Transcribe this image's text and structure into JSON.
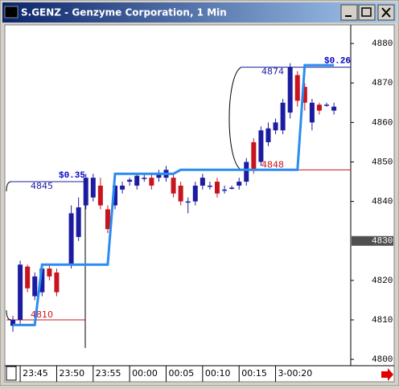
{
  "window": {
    "title": "S.GENZ - Genzyme Corporation, 1 Min"
  },
  "chart_data": {
    "type": "candlestick",
    "categories": [
      null,
      "23:45",
      null,
      null,
      null,
      null,
      "23:50",
      null,
      null,
      null,
      null,
      "23:55",
      null,
      null,
      null,
      null,
      "00:00",
      null,
      null,
      null,
      null,
      "00:05",
      null,
      null,
      null,
      null,
      "00:10",
      null,
      null,
      null,
      null,
      "00:15",
      null,
      null,
      null,
      null,
      "3-00:20",
      null,
      null,
      null,
      null,
      null,
      null,
      null,
      null
    ],
    "open": [
      4808.5,
      4810,
      4823.5,
      4816,
      4817,
      4823,
      4822,
      null,
      4824,
      4831,
      4839,
      4841,
      4844,
      4838,
      4839,
      4843,
      4845,
      4844,
      4846,
      4846,
      4846,
      4846,
      4846,
      4844,
      4840,
      4840,
      4844,
      4844,
      4845,
      4843,
      4843.5,
      4844,
      4845,
      4855,
      4850,
      4855,
      4858,
      4858,
      4862.5,
      4872,
      4869,
      4860,
      4864.5,
      4864.5,
      4863
    ],
    "high": [
      4811,
      4825,
      4824,
      4822,
      4824,
      4824,
      4823,
      null,
      4839,
      4841,
      4847,
      4847,
      4846,
      4839,
      4845,
      4845,
      4846,
      4847,
      4847,
      4847,
      4848,
      4849,
      4847,
      4845,
      4841,
      4845,
      4847,
      4845,
      4846,
      4844,
      4844,
      4846,
      4851,
      4856,
      4859,
      4860,
      4861,
      4866,
      4875,
      4873,
      4870,
      4866,
      4865,
      4865,
      4865
    ],
    "low": [
      4807,
      4809,
      4817,
      4815,
      4816,
      4820,
      4816,
      null,
      4823,
      4830,
      4838,
      4840,
      4838,
      4832,
      4838,
      4842,
      4844,
      4843,
      4845,
      4843,
      4845,
      4845,
      4841,
      4839,
      4837,
      4839,
      4843,
      4843,
      4841,
      4842,
      4843,
      4843,
      4844,
      4847,
      4849,
      4854,
      4857,
      4857,
      4861,
      4864,
      4863,
      4858,
      4862,
      4864,
      4862
    ],
    "close": [
      4810,
      4824,
      4818,
      4821,
      4823,
      4821,
      4817,
      null,
      4837,
      4838.5,
      4846,
      4846,
      4839,
      4833,
      4844,
      4844,
      4845.5,
      4846.5,
      4846,
      4844,
      4847,
      4848,
      4842,
      4840,
      4840,
      4844,
      4846,
      4844,
      4842,
      4843,
      4843.5,
      4845,
      4850,
      4848,
      4858,
      4858.5,
      4860,
      4865,
      4874,
      4865.5,
      4865,
      4865,
      4863,
      4864.5,
      4864
    ],
    "up_color": "#1c1ca0",
    "down_color": "#c8141e",
    "overlay": {
      "color": "#2a8cf0",
      "values": [
        4808.7,
        4808.7,
        4808.7,
        4808.7,
        4824,
        4824,
        4824,
        4824,
        4824,
        4824,
        4824,
        4824,
        4824,
        4824,
        4847,
        4847,
        4847,
        4847,
        4847,
        4847,
        4847,
        4847,
        4847,
        4848,
        4848,
        4848,
        4848,
        4848,
        4848,
        4848,
        4848,
        4848,
        4848,
        4848,
        4848,
        4848,
        4848,
        4848,
        4848,
        4848,
        4874.5,
        4874.5,
        4874.5,
        4874.5,
        4874.5
      ]
    },
    "ylim": [
      4798.4,
      4884.5
    ],
    "yticks": [
      4800,
      4810,
      4820,
      4840,
      4850,
      4860,
      4870,
      4880
    ],
    "cursor_price": 4830,
    "annotations": [
      {
        "label": "$0.35",
        "high": 4845,
        "low": 4810
      },
      {
        "label": "$0.26",
        "high": 4874,
        "low": 4848
      }
    ]
  }
}
